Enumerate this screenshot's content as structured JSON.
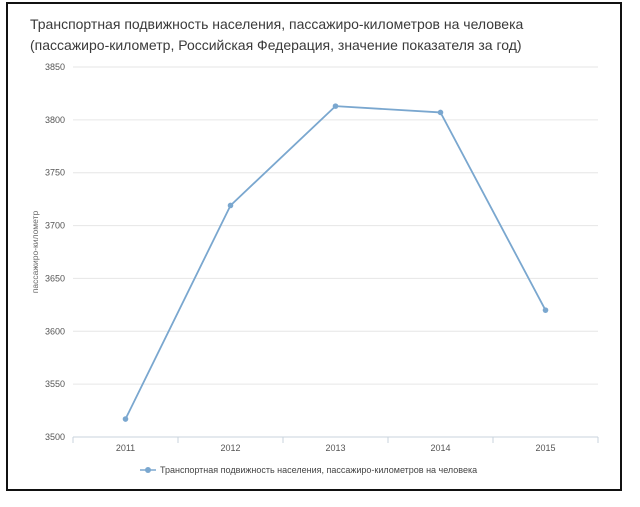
{
  "chart_data": {
    "type": "line",
    "title": "Транспортная подвижность населения, пассажиро-километров на человека",
    "subtitle": "(пассажиро-километр, Российская Федерация, значение показателя за год)",
    "ylabel": "пассажиро-километр",
    "xlabel": "",
    "categories": [
      "2011",
      "2012",
      "2013",
      "2014",
      "2015"
    ],
    "series": [
      {
        "name": "Транспортная подвижность населения, пассажиро-километров на человека",
        "values": [
          3517,
          3719,
          3813,
          3807,
          3620
        ],
        "color": "#7aa7cf"
      }
    ],
    "ylim": [
      3500,
      3850
    ],
    "yticks": [
      3500,
      3550,
      3600,
      3650,
      3700,
      3750,
      3800,
      3850
    ],
    "grid": true,
    "legend": "bottom-center"
  }
}
